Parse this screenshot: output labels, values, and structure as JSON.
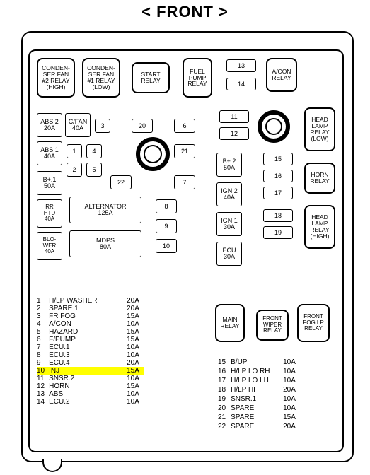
{
  "title": "< FRONT >",
  "relays": {
    "cond_fan_2": "CONDEN-\nSER FAN\n#2 RELAY\n(HIGH)",
    "cond_fan_1": "CONDEN-\nSER FAN\n#1 RELAY\n(LOW)",
    "start": "START\nRELAY",
    "fuel_pump": "FUEL\nPUMP\nRELAY",
    "acon": "A/CON\nRELAY",
    "head_lamp_low": "HEAD\nLAMP\nRELAY\n(LOW)",
    "horn": "HORN\nRELAY",
    "head_lamp_high": "HEAD\nLAMP\nRELAY\n(HIGH)",
    "main": "MAIN\nRELAY",
    "front_wiper": "FRONT\nWIPER\nRELAY",
    "front_fog": "FRONT\nFOG LP\nRELAY"
  },
  "blocks": {
    "abs2": "ABS.2\n20A",
    "cfan": "C/FAN\n40A",
    "abs1": "ABS.1\n40A",
    "b_plus1": "B+.1\n50A",
    "rr_htd": "RR\nHTD\n40A",
    "blower": "BLO-\nWER\n40A",
    "alternator": "ALTERNATOR\n125A",
    "mdps": "MDPS\n80A",
    "b_plus2": "B+.2\n50A",
    "ign2": "IGN.2\n40A",
    "ign1": "IGN.1\n30A",
    "ecu": "ECU\n30A"
  },
  "slots_top": [
    "13",
    "14"
  ],
  "slots_mid1": [
    "11",
    "12"
  ],
  "slots_mid2": [
    "15",
    "16",
    "17",
    "18",
    "19"
  ],
  "slots_left_col": [
    "3",
    "1",
    "4",
    "2",
    "5",
    "22"
  ],
  "slots_center": [
    "20",
    "6",
    "21",
    "7",
    "8",
    "9",
    "10"
  ],
  "legend_left": [
    {
      "n": "1",
      "name": "H/LP WASHER",
      "amp": "20A"
    },
    {
      "n": "2",
      "name": "SPARE 1",
      "amp": "20A"
    },
    {
      "n": "3",
      "name": "FR FOG",
      "amp": "15A"
    },
    {
      "n": "4",
      "name": "A/CON",
      "amp": "10A"
    },
    {
      "n": "5",
      "name": "HAZARD",
      "amp": "15A"
    },
    {
      "n": "6",
      "name": "F/PUMP",
      "amp": "15A"
    },
    {
      "n": "7",
      "name": "ECU.1",
      "amp": "10A"
    },
    {
      "n": "8",
      "name": "ECU.3",
      "amp": "10A"
    },
    {
      "n": "9",
      "name": "ECU.4",
      "amp": "20A"
    },
    {
      "n": "10",
      "name": "INJ",
      "amp": "15A",
      "highlight": true
    },
    {
      "n": "11",
      "name": "SNSR.2",
      "amp": "10A"
    },
    {
      "n": "12",
      "name": "HORN",
      "amp": "15A"
    },
    {
      "n": "13",
      "name": "ABS",
      "amp": "10A"
    },
    {
      "n": "14",
      "name": "ECU.2",
      "amp": "10A"
    }
  ],
  "legend_right": [
    {
      "n": "15",
      "name": "B/UP",
      "amp": "10A"
    },
    {
      "n": "16",
      "name": "H/LP LO RH",
      "amp": "10A"
    },
    {
      "n": "17",
      "name": "H/LP LO LH",
      "amp": "10A"
    },
    {
      "n": "18",
      "name": "H/LP HI",
      "amp": "20A"
    },
    {
      "n": "19",
      "name": "SNSR.1",
      "amp": "10A"
    },
    {
      "n": "20",
      "name": "SPARE",
      "amp": "10A"
    },
    {
      "n": "21",
      "name": "SPARE",
      "amp": "15A"
    },
    {
      "n": "22",
      "name": "SPARE",
      "amp": "20A"
    }
  ],
  "colors": {
    "highlight": "#ffff00",
    "line": "#000000",
    "bg": "#ffffff"
  }
}
